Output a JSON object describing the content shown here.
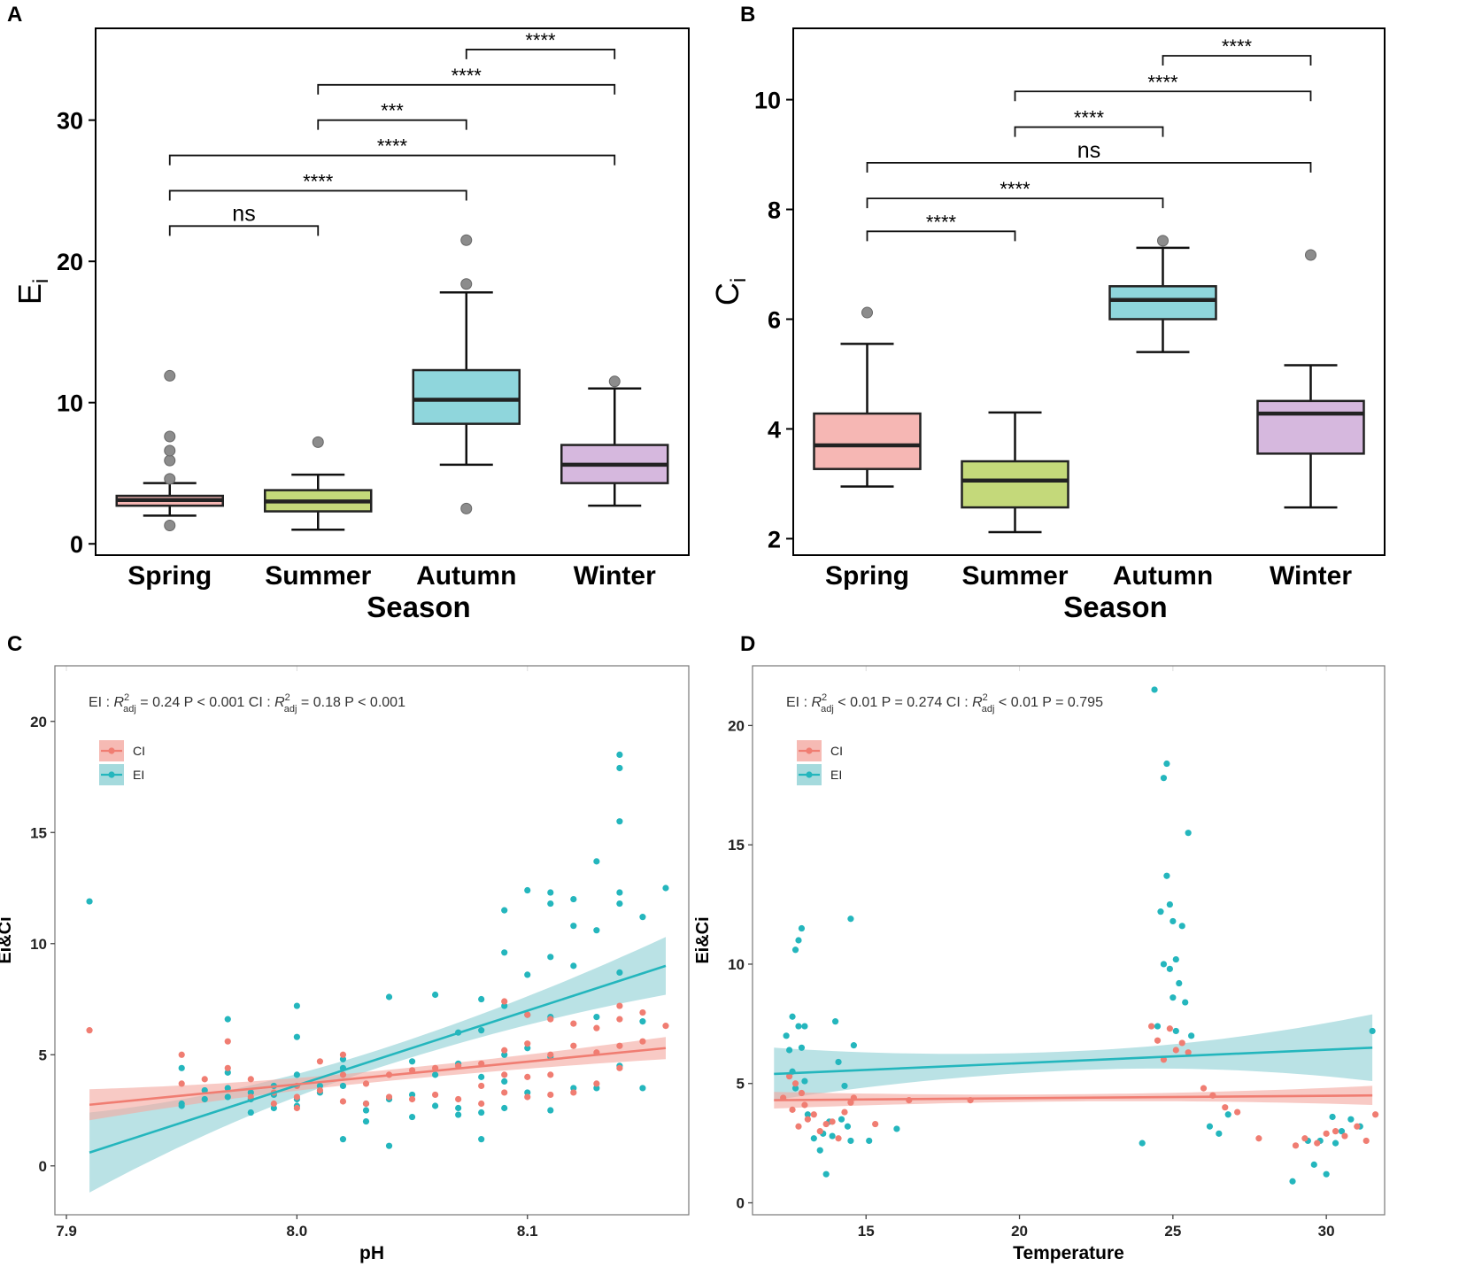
{
  "panels": {
    "A": "A",
    "B": "B",
    "C": "C",
    "D": "D"
  },
  "colors": {
    "spring": "#f6b7b4",
    "summer": "#c4d97a",
    "autumn": "#8fd6dc",
    "winter": "#d6b8de",
    "ci": "#f07d72",
    "ei": "#24b6bd",
    "ci_band": "#f4a9a1",
    "ei_band": "#8fd1d5",
    "outlier": "#8c8c8c"
  },
  "chart_data": [
    {
      "id": "A",
      "type": "box",
      "title": "",
      "xlabel": "Season",
      "ylabel": "E",
      "ylabel_sub": "i",
      "categories": [
        "Spring",
        "Summer",
        "Autumn",
        "Winter"
      ],
      "ylim": [
        -0.8,
        36.5
      ],
      "yticks": [
        0,
        10,
        20,
        30
      ],
      "boxes": [
        {
          "category": "Spring",
          "min": 2.0,
          "q1": 2.7,
          "median": 3.1,
          "q3": 3.4,
          "max": 4.3,
          "outliers": [
            1.3,
            4.6,
            5.9,
            6.6,
            7.6,
            11.9
          ],
          "color_key": "spring"
        },
        {
          "category": "Summer",
          "min": 1.0,
          "q1": 2.3,
          "median": 3.0,
          "q3": 3.8,
          "max": 4.9,
          "outliers": [
            7.2
          ],
          "color_key": "summer"
        },
        {
          "category": "Autumn",
          "min": 5.6,
          "q1": 8.5,
          "median": 10.2,
          "q3": 12.3,
          "max": 17.8,
          "outliers": [
            2.5,
            18.4,
            21.5
          ],
          "color_key": "autumn"
        },
        {
          "category": "Winter",
          "min": 2.7,
          "q1": 4.3,
          "median": 5.6,
          "q3": 7.0,
          "max": 11.0,
          "outliers": [
            11.5
          ],
          "color_key": "winter"
        }
      ],
      "comparisons": [
        {
          "from": "Spring",
          "to": "Summer",
          "label": "ns",
          "y": 22.5
        },
        {
          "from": "Spring",
          "to": "Autumn",
          "label": "****",
          "y": 25.0
        },
        {
          "from": "Spring",
          "to": "Winter",
          "label": "****",
          "y": 27.5
        },
        {
          "from": "Summer",
          "to": "Autumn",
          "label": "***",
          "y": 30.0
        },
        {
          "from": "Summer",
          "to": "Winter",
          "label": "****",
          "y": 32.5
        },
        {
          "from": "Autumn",
          "to": "Winter",
          "label": "****",
          "y": 35.0
        }
      ]
    },
    {
      "id": "B",
      "type": "box",
      "title": "",
      "xlabel": "Season",
      "ylabel": "C",
      "ylabel_sub": "i",
      "categories": [
        "Spring",
        "Summer",
        "Autumn",
        "Winter"
      ],
      "ylim": [
        1.7,
        11.3
      ],
      "yticks": [
        2,
        4,
        6,
        8,
        10
      ],
      "boxes": [
        {
          "category": "Spring",
          "min": 2.95,
          "q1": 3.27,
          "median": 3.7,
          "q3": 4.28,
          "max": 5.55,
          "outliers": [
            6.12
          ],
          "color_key": "spring"
        },
        {
          "category": "Summer",
          "min": 2.12,
          "q1": 2.57,
          "median": 3.06,
          "q3": 3.41,
          "max": 4.3,
          "outliers": [],
          "color_key": "summer"
        },
        {
          "category": "Autumn",
          "min": 5.4,
          "q1": 6.0,
          "median": 6.35,
          "q3": 6.6,
          "max": 7.3,
          "outliers": [
            7.43
          ],
          "color_key": "autumn"
        },
        {
          "category": "Winter",
          "min": 2.57,
          "q1": 3.55,
          "median": 4.28,
          "q3": 4.51,
          "max": 5.16,
          "outliers": [
            7.17
          ],
          "color_key": "winter"
        }
      ],
      "comparisons": [
        {
          "from": "Spring",
          "to": "Summer",
          "label": "****",
          "y": 7.6
        },
        {
          "from": "Spring",
          "to": "Autumn",
          "label": "****",
          "y": 8.2
        },
        {
          "from": "Spring",
          "to": "Winter",
          "label": "ns",
          "y": 8.85
        },
        {
          "from": "Summer",
          "to": "Autumn",
          "label": "****",
          "y": 9.5
        },
        {
          "from": "Summer",
          "to": "Winter",
          "label": "****",
          "y": 10.15
        },
        {
          "from": "Autumn",
          "to": "Winter",
          "label": "****",
          "y": 10.8
        }
      ]
    },
    {
      "id": "C",
      "type": "scatter",
      "title": "",
      "xlabel": "pH",
      "ylabel": "Ei&Ci",
      "xlim": [
        7.895,
        8.17
      ],
      "ylim": [
        -2.2,
        22.5
      ],
      "xticks": [
        7.9,
        8.0,
        8.1
      ],
      "xtick_labels": [
        "7.9",
        "8.0",
        "8.1"
      ],
      "yticks": [
        0,
        5,
        10,
        15,
        20
      ],
      "annotation": {
        "ei_prefix": "EI :",
        "ei_r2": "= 0.24",
        "ei_p": "P < 0.001",
        "ci_prefix": "CI :",
        "ci_r2": "= 0.18",
        "ci_p": "P < 0.001",
        "r_symbol": "R",
        "r_sup": "2",
        "r_sub": "adj"
      },
      "legend": [
        "CI",
        "EI"
      ],
      "fits": {
        "CI": {
          "x": [
            7.91,
            8.16
          ],
          "y": [
            2.75,
            5.3
          ],
          "band_start": 0.7,
          "band_mid": 0.25,
          "band_end": 0.5
        },
        "EI": {
          "x": [
            7.91,
            8.16
          ],
          "y": [
            0.6,
            9.0
          ],
          "band_start": 1.8,
          "band_mid": 0.4,
          "band_end": 1.3
        }
      },
      "series": [
        {
          "name": "EI",
          "x": [
            7.91,
            7.95,
            7.95,
            7.95,
            7.96,
            7.96,
            7.97,
            7.97,
            7.97,
            7.97,
            7.98,
            7.98,
            7.98,
            7.99,
            7.99,
            7.99,
            8.0,
            8.0,
            8.0,
            8.0,
            8.0,
            8.01,
            8.01,
            8.02,
            8.02,
            8.02,
            8.02,
            8.03,
            8.03,
            8.03,
            8.04,
            8.04,
            8.04,
            8.05,
            8.05,
            8.05,
            8.06,
            8.06,
            8.06,
            8.07,
            8.07,
            8.07,
            8.07,
            8.08,
            8.08,
            8.08,
            8.08,
            8.08,
            8.09,
            8.09,
            8.09,
            8.09,
            8.09,
            8.09,
            8.1,
            8.1,
            8.1,
            8.1,
            8.1,
            8.11,
            8.11,
            8.11,
            8.11,
            8.11,
            8.11,
            8.12,
            8.12,
            8.12,
            8.12,
            8.13,
            8.13,
            8.13,
            8.13,
            8.14,
            8.14,
            8.14,
            8.14,
            8.14,
            8.14,
            8.14,
            8.15,
            8.15,
            8.15,
            8.16
          ],
          "y": [
            11.9,
            4.4,
            2.8,
            2.7,
            3.0,
            3.4,
            6.6,
            4.2,
            3.5,
            3.1,
            3.3,
            2.4,
            3.0,
            3.6,
            3.2,
            2.6,
            7.2,
            5.8,
            4.1,
            3.0,
            2.7,
            3.6,
            3.3,
            4.8,
            4.4,
            1.2,
            3.6,
            2.8,
            2.5,
            2.0,
            7.6,
            3.0,
            0.9,
            4.7,
            3.2,
            2.2,
            7.7,
            4.1,
            2.7,
            6.0,
            4.6,
            2.6,
            2.3,
            7.5,
            6.1,
            4.0,
            2.4,
            1.2,
            11.5,
            9.6,
            7.2,
            5.0,
            3.8,
            2.6,
            12.4,
            8.6,
            6.8,
            5.3,
            3.3,
            12.3,
            11.8,
            9.4,
            6.7,
            4.9,
            2.5,
            12.0,
            10.8,
            9.0,
            3.5,
            13.7,
            10.6,
            6.7,
            3.5,
            18.5,
            17.9,
            15.5,
            12.3,
            11.8,
            8.7,
            4.5,
            11.2,
            6.5,
            3.5,
            12.5
          ],
          "color_key": "ei"
        },
        {
          "name": "CI",
          "x": [
            7.91,
            7.95,
            7.95,
            7.96,
            7.97,
            7.97,
            7.98,
            7.98,
            7.99,
            7.99,
            8.0,
            8.0,
            8.0,
            8.01,
            8.01,
            8.02,
            8.02,
            8.02,
            8.03,
            8.03,
            8.04,
            8.04,
            8.05,
            8.05,
            8.06,
            8.06,
            8.07,
            8.07,
            8.08,
            8.08,
            8.08,
            8.09,
            8.09,
            8.09,
            8.09,
            8.1,
            8.1,
            8.1,
            8.1,
            8.11,
            8.11,
            8.11,
            8.11,
            8.12,
            8.12,
            8.12,
            8.13,
            8.13,
            8.13,
            8.14,
            8.14,
            8.14,
            8.14,
            8.15,
            8.15,
            8.16
          ],
          "y": [
            6.1,
            5.0,
            3.7,
            3.9,
            5.6,
            4.4,
            3.9,
            3.1,
            3.3,
            2.8,
            3.6,
            3.1,
            2.6,
            4.7,
            3.4,
            5.0,
            4.1,
            2.9,
            3.7,
            2.8,
            4.1,
            3.1,
            4.3,
            3.0,
            4.4,
            3.2,
            4.5,
            3.0,
            4.6,
            3.6,
            2.8,
            7.4,
            5.2,
            4.1,
            3.3,
            6.8,
            5.5,
            4.0,
            3.1,
            6.6,
            5.0,
            4.1,
            3.2,
            6.4,
            5.4,
            3.3,
            6.2,
            5.1,
            3.7,
            7.2,
            6.6,
            5.4,
            4.4,
            6.9,
            5.6,
            6.3
          ],
          "color_key": "ci"
        }
      ]
    },
    {
      "id": "D",
      "type": "scatter",
      "title": "",
      "xlabel": "Temperature",
      "ylabel": "Ei&Ci",
      "xlim": [
        11.3,
        31.9
      ],
      "ylim": [
        -0.5,
        22.5
      ],
      "xticks": [
        15,
        20,
        25,
        30
      ],
      "xtick_labels": [
        "15",
        "20",
        "25",
        "30"
      ],
      "yticks": [
        0,
        5,
        10,
        15,
        20
      ],
      "annotation": {
        "ei_prefix": "EI :",
        "ei_r2": "< 0.01",
        "ei_p": "P = 0.274",
        "ci_prefix": "CI :",
        "ci_r2": "< 0.01",
        "ci_p": "P = 0.795",
        "r_symbol": "R",
        "r_sup": "2",
        "r_sub": "adj"
      },
      "legend": [
        "CI",
        "EI"
      ],
      "fits": {
        "CI": {
          "x": [
            12.0,
            31.5
          ],
          "y": [
            4.3,
            4.5
          ],
          "band_start": 0.35,
          "band_mid": 0.15,
          "band_end": 0.4
        },
        "EI": {
          "x": [
            12.0,
            31.5
          ],
          "y": [
            5.4,
            6.5
          ],
          "band_start": 1.1,
          "band_mid": 0.4,
          "band_end": 1.4
        }
      },
      "series": [
        {
          "name": "EI",
          "x": [
            12.4,
            12.5,
            12.6,
            12.6,
            12.7,
            12.7,
            12.8,
            12.8,
            12.9,
            12.9,
            13.0,
            13.0,
            13.1,
            13.3,
            13.5,
            13.6,
            13.7,
            13.8,
            13.9,
            14.0,
            14.1,
            14.2,
            14.3,
            14.4,
            14.5,
            14.5,
            14.6,
            15.1,
            16.0,
            24.0,
            24.4,
            24.5,
            24.6,
            24.7,
            24.7,
            24.8,
            24.8,
            24.9,
            24.9,
            25.0,
            25.0,
            25.1,
            25.1,
            25.2,
            25.3,
            25.4,
            25.5,
            25.6,
            26.2,
            26.5,
            26.8,
            28.9,
            29.4,
            29.6,
            29.8,
            30.0,
            30.2,
            30.3,
            30.5,
            30.8,
            31.1,
            31.5
          ],
          "y": [
            7.0,
            6.4,
            7.8,
            5.5,
            4.8,
            10.6,
            11.0,
            7.4,
            6.5,
            11.5,
            7.4,
            5.1,
            3.7,
            2.7,
            2.2,
            2.9,
            1.2,
            3.4,
            2.8,
            7.6,
            5.9,
            3.5,
            4.9,
            3.2,
            11.9,
            2.6,
            6.6,
            2.6,
            3.1,
            2.5,
            21.5,
            7.4,
            12.2,
            17.8,
            10.0,
            18.4,
            13.7,
            12.5,
            9.8,
            8.6,
            11.8,
            7.2,
            10.2,
            9.2,
            11.6,
            8.4,
            15.5,
            7.0,
            3.2,
            2.9,
            3.7,
            0.9,
            2.6,
            1.6,
            2.6,
            1.2,
            3.6,
            2.5,
            3.0,
            3.5,
            3.2,
            7.2
          ],
          "color_key": "ei"
        },
        {
          "name": "CI",
          "x": [
            12.3,
            12.5,
            12.6,
            12.7,
            12.8,
            12.9,
            13.0,
            13.1,
            13.3,
            13.5,
            13.7,
            13.9,
            14.1,
            14.3,
            14.5,
            14.6,
            15.3,
            16.4,
            18.4,
            24.3,
            24.5,
            24.7,
            24.9,
            25.1,
            25.3,
            25.5,
            26.0,
            26.3,
            26.7,
            27.1,
            27.8,
            29.0,
            29.3,
            29.7,
            30.0,
            30.3,
            30.6,
            31.0,
            31.3,
            31.6
          ],
          "y": [
            4.4,
            5.3,
            3.9,
            5.0,
            3.2,
            4.6,
            4.1,
            3.5,
            3.7,
            3.0,
            3.3,
            3.4,
            2.7,
            3.8,
            4.2,
            4.4,
            3.3,
            4.3,
            4.3,
            7.4,
            6.8,
            6.0,
            7.3,
            6.4,
            6.7,
            6.3,
            4.8,
            4.5,
            4.0,
            3.8,
            2.7,
            2.4,
            2.7,
            2.5,
            2.9,
            3.0,
            2.8,
            3.2,
            2.6,
            3.7
          ],
          "color_key": "ci"
        }
      ]
    }
  ]
}
